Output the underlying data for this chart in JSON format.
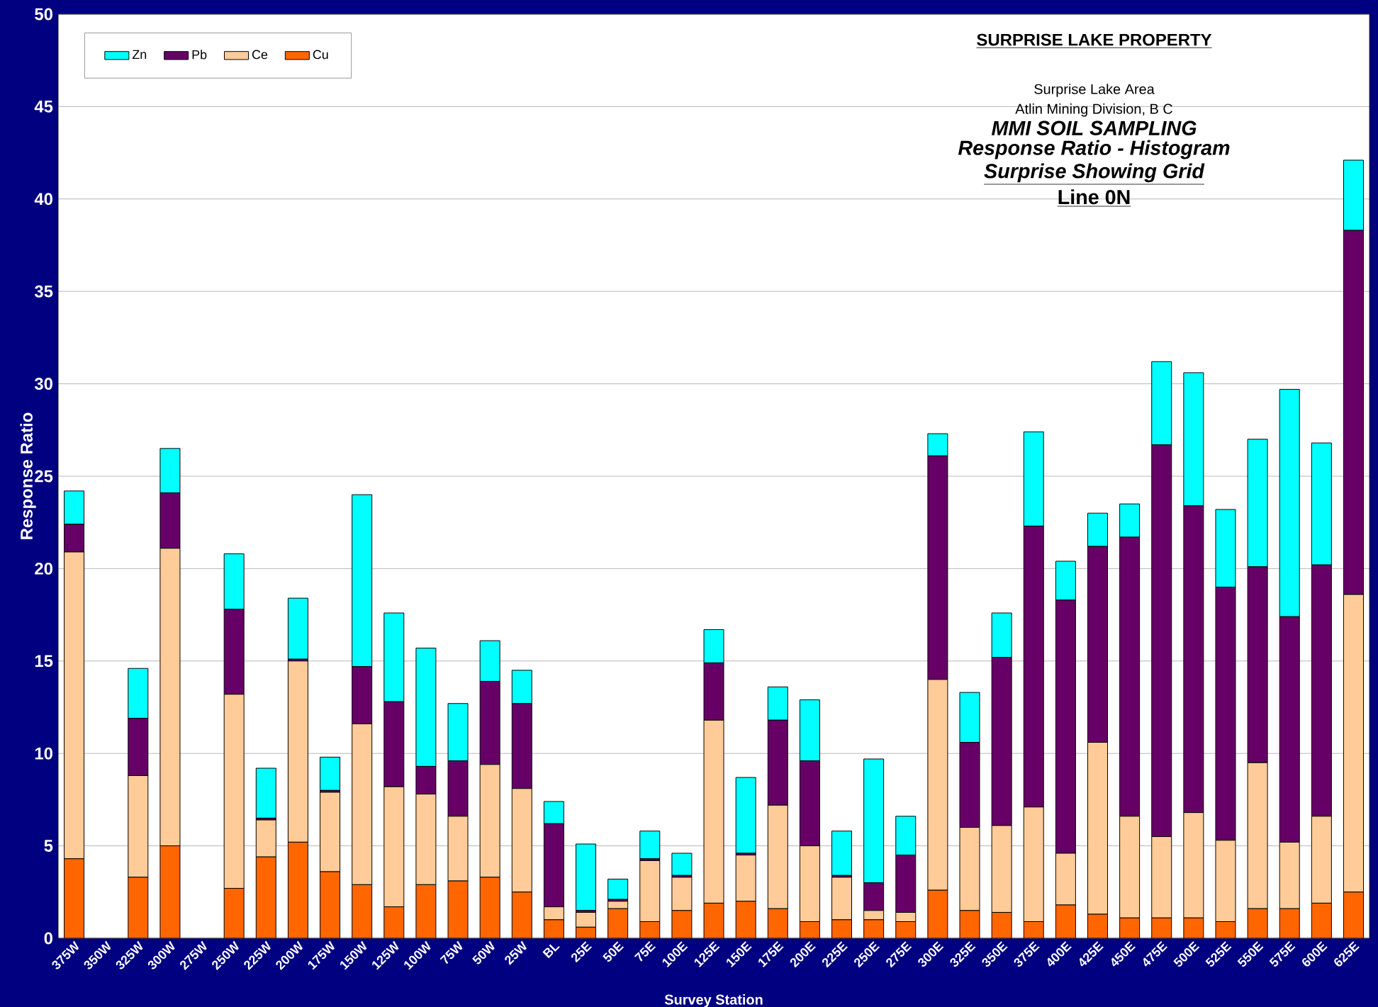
{
  "chart_data": {
    "type": "bar",
    "stacked": true,
    "title": "SURPRISE LAKE PROPERTY",
    "annotations": [
      "Surprise Lake Area",
      "Atlin Mining Division, B C",
      "MMI SOIL SAMPLING",
      "Response Ratio - Histogram",
      "Surprise Showing Grid",
      "Line 0N"
    ],
    "xlabel": "Survey Station",
    "ylabel": "Response Ratio",
    "categories": [
      "375W",
      "350W",
      "325W",
      "300W",
      "275W",
      "250W",
      "225W",
      "200W",
      "175W",
      "150W",
      "125W",
      "100W",
      "75W",
      "50W",
      "25W",
      "BL",
      "25E",
      "50E",
      "75E",
      "100E",
      "125E",
      "150E",
      "175E",
      "200E",
      "225E",
      "250E",
      "275E",
      "300E",
      "325E",
      "350E",
      "375E",
      "400E",
      "425E",
      "450E",
      "475E",
      "500E",
      "525E",
      "550E",
      "575E",
      "600E",
      "625E"
    ],
    "series": [
      {
        "name": "Cu",
        "color": "#ff6600",
        "values": [
          4.3,
          0,
          3.3,
          5.0,
          0,
          2.7,
          4.4,
          5.2,
          3.6,
          2.9,
          1.7,
          2.9,
          3.1,
          3.3,
          2.5,
          1.0,
          0.6,
          1.6,
          0.9,
          1.5,
          1.9,
          2.0,
          1.6,
          0.9,
          1.0,
          1.0,
          0.9,
          2.6,
          1.5,
          1.4,
          0.9,
          1.8,
          1.3,
          1.1,
          1.1,
          1.1,
          0.9,
          1.6,
          1.6,
          1.9,
          2.5
        ]
      },
      {
        "name": "Ce",
        "color": "#ffcc99",
        "values": [
          16.6,
          0,
          5.5,
          16.1,
          0,
          10.5,
          2.0,
          9.8,
          4.3,
          8.7,
          6.5,
          4.9,
          3.5,
          6.1,
          5.6,
          0.7,
          0.8,
          0.4,
          3.3,
          1.8,
          9.9,
          2.5,
          5.6,
          4.1,
          2.3,
          0.5,
          0.5,
          11.4,
          4.5,
          4.7,
          6.2,
          2.8,
          9.3,
          5.5,
          4.4,
          5.7,
          4.4,
          7.9,
          3.6,
          4.7,
          16.1
        ]
      },
      {
        "name": "Pb",
        "color": "#660066",
        "values": [
          1.5,
          0,
          3.1,
          3.0,
          0,
          4.6,
          0.1,
          0.1,
          0.1,
          3.1,
          4.6,
          1.5,
          3.0,
          4.5,
          4.6,
          4.5,
          0.1,
          0.1,
          0.1,
          0.1,
          3.1,
          0.1,
          4.6,
          4.6,
          0.1,
          1.5,
          3.1,
          12.1,
          4.6,
          9.1,
          15.2,
          13.7,
          10.6,
          15.1,
          21.2,
          16.6,
          13.7,
          10.6,
          12.2,
          13.6,
          19.7
        ]
      },
      {
        "name": "Zn",
        "color": "#00ffff",
        "values": [
          1.8,
          0,
          2.7,
          2.4,
          0,
          3.0,
          2.7,
          3.3,
          1.8,
          9.3,
          4.8,
          6.4,
          3.1,
          2.2,
          1.8,
          1.2,
          3.6,
          1.1,
          1.5,
          1.2,
          1.8,
          4.1,
          1.8,
          3.3,
          2.4,
          6.7,
          2.1,
          1.2,
          2.7,
          2.4,
          5.1,
          2.1,
          1.8,
          1.8,
          4.5,
          7.2,
          4.2,
          6.9,
          12.3,
          6.6,
          3.8
        ]
      }
    ],
    "ylim": [
      0,
      50
    ],
    "yticks": [
      0,
      5,
      10,
      15,
      20,
      25,
      30,
      35,
      40,
      45,
      50
    ],
    "grid": "y",
    "legend": "top left"
  }
}
